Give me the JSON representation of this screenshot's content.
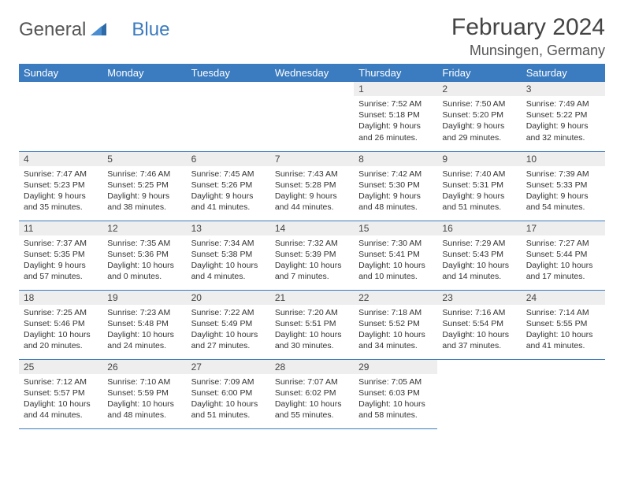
{
  "brand": {
    "part1": "General",
    "part2": "Blue"
  },
  "title": "February 2024",
  "location": "Munsingen, Germany",
  "colors": {
    "header_bg": "#3b7bbf",
    "header_fg": "#ffffff",
    "daynum_bg": "#eeeeee",
    "row_border": "#3b7bbf",
    "text": "#333333",
    "brand_gray": "#555555",
    "brand_blue": "#3b7bbf"
  },
  "weekdays": [
    "Sunday",
    "Monday",
    "Tuesday",
    "Wednesday",
    "Thursday",
    "Friday",
    "Saturday"
  ],
  "grid": [
    [
      null,
      null,
      null,
      null,
      {
        "n": "1",
        "sr": "7:52 AM",
        "ss": "5:18 PM",
        "dl": "9 hours and 26 minutes."
      },
      {
        "n": "2",
        "sr": "7:50 AM",
        "ss": "5:20 PM",
        "dl": "9 hours and 29 minutes."
      },
      {
        "n": "3",
        "sr": "7:49 AM",
        "ss": "5:22 PM",
        "dl": "9 hours and 32 minutes."
      }
    ],
    [
      {
        "n": "4",
        "sr": "7:47 AM",
        "ss": "5:23 PM",
        "dl": "9 hours and 35 minutes."
      },
      {
        "n": "5",
        "sr": "7:46 AM",
        "ss": "5:25 PM",
        "dl": "9 hours and 38 minutes."
      },
      {
        "n": "6",
        "sr": "7:45 AM",
        "ss": "5:26 PM",
        "dl": "9 hours and 41 minutes."
      },
      {
        "n": "7",
        "sr": "7:43 AM",
        "ss": "5:28 PM",
        "dl": "9 hours and 44 minutes."
      },
      {
        "n": "8",
        "sr": "7:42 AM",
        "ss": "5:30 PM",
        "dl": "9 hours and 48 minutes."
      },
      {
        "n": "9",
        "sr": "7:40 AM",
        "ss": "5:31 PM",
        "dl": "9 hours and 51 minutes."
      },
      {
        "n": "10",
        "sr": "7:39 AM",
        "ss": "5:33 PM",
        "dl": "9 hours and 54 minutes."
      }
    ],
    [
      {
        "n": "11",
        "sr": "7:37 AM",
        "ss": "5:35 PM",
        "dl": "9 hours and 57 minutes."
      },
      {
        "n": "12",
        "sr": "7:35 AM",
        "ss": "5:36 PM",
        "dl": "10 hours and 0 minutes."
      },
      {
        "n": "13",
        "sr": "7:34 AM",
        "ss": "5:38 PM",
        "dl": "10 hours and 4 minutes."
      },
      {
        "n": "14",
        "sr": "7:32 AM",
        "ss": "5:39 PM",
        "dl": "10 hours and 7 minutes."
      },
      {
        "n": "15",
        "sr": "7:30 AM",
        "ss": "5:41 PM",
        "dl": "10 hours and 10 minutes."
      },
      {
        "n": "16",
        "sr": "7:29 AM",
        "ss": "5:43 PM",
        "dl": "10 hours and 14 minutes."
      },
      {
        "n": "17",
        "sr": "7:27 AM",
        "ss": "5:44 PM",
        "dl": "10 hours and 17 minutes."
      }
    ],
    [
      {
        "n": "18",
        "sr": "7:25 AM",
        "ss": "5:46 PM",
        "dl": "10 hours and 20 minutes."
      },
      {
        "n": "19",
        "sr": "7:23 AM",
        "ss": "5:48 PM",
        "dl": "10 hours and 24 minutes."
      },
      {
        "n": "20",
        "sr": "7:22 AM",
        "ss": "5:49 PM",
        "dl": "10 hours and 27 minutes."
      },
      {
        "n": "21",
        "sr": "7:20 AM",
        "ss": "5:51 PM",
        "dl": "10 hours and 30 minutes."
      },
      {
        "n": "22",
        "sr": "7:18 AM",
        "ss": "5:52 PM",
        "dl": "10 hours and 34 minutes."
      },
      {
        "n": "23",
        "sr": "7:16 AM",
        "ss": "5:54 PM",
        "dl": "10 hours and 37 minutes."
      },
      {
        "n": "24",
        "sr": "7:14 AM",
        "ss": "5:55 PM",
        "dl": "10 hours and 41 minutes."
      }
    ],
    [
      {
        "n": "25",
        "sr": "7:12 AM",
        "ss": "5:57 PM",
        "dl": "10 hours and 44 minutes."
      },
      {
        "n": "26",
        "sr": "7:10 AM",
        "ss": "5:59 PM",
        "dl": "10 hours and 48 minutes."
      },
      {
        "n": "27",
        "sr": "7:09 AM",
        "ss": "6:00 PM",
        "dl": "10 hours and 51 minutes."
      },
      {
        "n": "28",
        "sr": "7:07 AM",
        "ss": "6:02 PM",
        "dl": "10 hours and 55 minutes."
      },
      {
        "n": "29",
        "sr": "7:05 AM",
        "ss": "6:03 PM",
        "dl": "10 hours and 58 minutes."
      },
      null,
      null
    ]
  ],
  "labels": {
    "sunrise": "Sunrise:",
    "sunset": "Sunset:",
    "daylight": "Daylight:"
  }
}
